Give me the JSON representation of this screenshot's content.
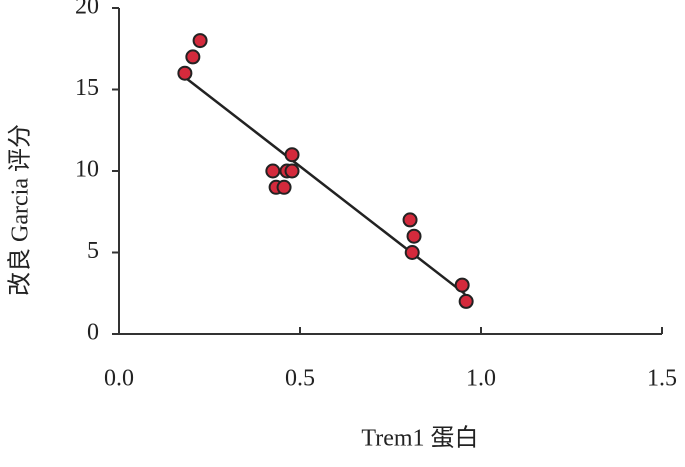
{
  "chart_data": {
    "type": "scatter",
    "x_label": "Trem1 蛋白",
    "y_label": "改良 Garcia 评分",
    "xlim": [
      0,
      1.5
    ],
    "xticks": [
      {
        "value": 0,
        "label": "0.0"
      },
      0.5,
      {
        "value": 1,
        "label": "1.0"
      },
      1.5
    ],
    "ylim": [
      0,
      20
    ],
    "yticks": [
      0,
      5,
      10,
      15,
      20
    ],
    "series": [
      {
        "color": "#d42a3c",
        "x": [
          0.182,
          0.204,
          0.224,
          0.425,
          0.434,
          0.456,
          0.464,
          0.478,
          0.478,
          0.804,
          0.815,
          0.81,
          0.948,
          0.959
        ],
        "values": [
          16,
          17,
          18,
          10,
          9,
          9,
          10,
          10,
          11,
          7,
          6,
          5,
          3,
          2
        ]
      }
    ],
    "fit_line": {
      "color": "#222",
      "x": [
        0.185,
        0.956
      ],
      "values": [
        15.7,
        2.45
      ]
    }
  }
}
